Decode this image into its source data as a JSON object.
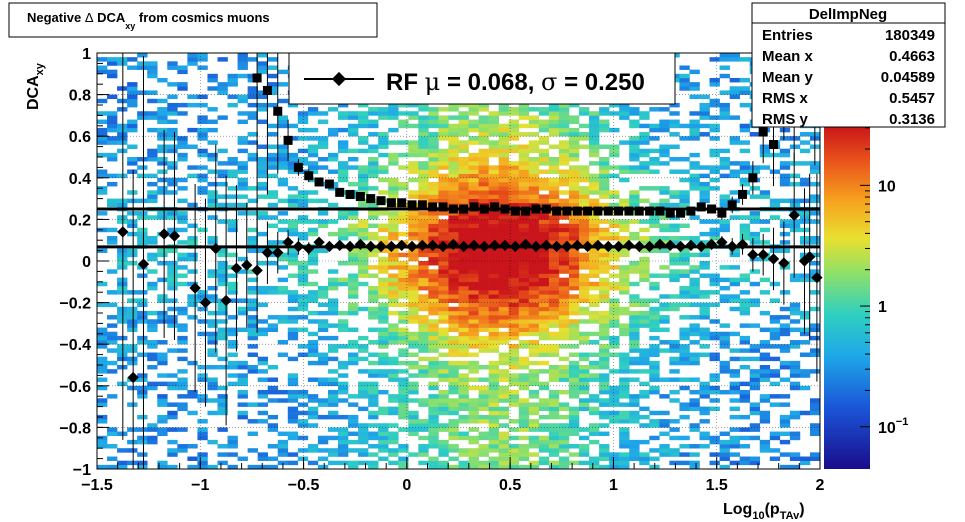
{
  "chart_data": {
    "type": "heatmap",
    "title": {
      "main": "Negative ",
      "symbol": "Δ",
      "dca": " DCA",
      "sub": "xy",
      "rest": " from cosmics muons"
    },
    "xlabel": {
      "main": "Log",
      "sub1": "10",
      "mid": "(p",
      "sub2": "TAv",
      "end": ")"
    },
    "ylabel": {
      "main": "DCA",
      "sub": "xy"
    },
    "xlim": [
      -1.5,
      2
    ],
    "ylim": [
      -1,
      1
    ],
    "x_ticks": [
      -1.5,
      -1,
      -0.5,
      0,
      0.5,
      1,
      1.5,
      2
    ],
    "x_tick_labels": [
      "−1.5",
      "−1",
      "−0.5",
      "0",
      "0.5",
      "1",
      "1.5",
      "2"
    ],
    "y_ticks": [
      -1,
      -0.8,
      -0.6,
      -0.4,
      -0.2,
      0,
      0.2,
      0.4,
      0.6,
      0.8,
      1
    ],
    "y_tick_labels": [
      "−1",
      "−0.8",
      "−0.6",
      "−0.4",
      "−0.2",
      "0",
      "0.2",
      "0.4",
      "0.6",
      "0.8",
      "1"
    ],
    "z_scale": "log",
    "z_ticks": [
      {
        "v": 10,
        "label": "10"
      },
      {
        "v": 1,
        "label": "1"
      },
      {
        "v": 0.1,
        "base": "10",
        "exp": "−1"
      }
    ],
    "grid": true,
    "stats_box": {
      "name": "DelImpNeg",
      "rows": [
        {
          "label": "Entries",
          "value": "180349"
        },
        {
          "label": "Mean x",
          "value": "0.4663"
        },
        {
          "label": "Mean y",
          "value": "0.04589"
        },
        {
          "label": "RMS x",
          "value": "0.5457"
        },
        {
          "label": "RMS y",
          "value": "0.3136"
        }
      ]
    },
    "legend": {
      "prefix": "RF ",
      "mu": "μ",
      "mid": " = 0.068, ",
      "sigma": "σ",
      "end": " = 0.250",
      "placement": "top"
    },
    "fit_lines": [
      {
        "name": "mean",
        "y": 0.068
      },
      {
        "name": "sigma",
        "y": 0.25
      }
    ],
    "mean_points": [
      {
        "x": -1.375,
        "y": 0.14,
        "err": 1.0
      },
      {
        "x": -1.325,
        "y": -0.56,
        "err": 1.0
      },
      {
        "x": -1.275,
        "y": -0.015,
        "err": 1.0
      },
      {
        "x": -1.175,
        "y": 0.13,
        "err": 0.5
      },
      {
        "x": -1.125,
        "y": 0.12,
        "err": 0.5
      },
      {
        "x": -1.025,
        "y": -0.13,
        "err": 0.5
      },
      {
        "x": -0.975,
        "y": -0.2,
        "err": 0.5
      },
      {
        "x": -0.925,
        "y": 0.06,
        "err": 0.5
      },
      {
        "x": -0.875,
        "y": -0.19,
        "err": 0.6
      },
      {
        "x": -0.825,
        "y": -0.035,
        "err": 0.4
      },
      {
        "x": -0.775,
        "y": -0.02,
        "err": 0.3
      },
      {
        "x": -0.725,
        "y": -0.045,
        "err": 0.3
      },
      {
        "x": -0.675,
        "y": 0.04,
        "err": 0.15
      },
      {
        "x": -0.625,
        "y": 0.04,
        "err": 0.1
      },
      {
        "x": -0.575,
        "y": 0.09,
        "err": 0.06
      },
      {
        "x": -0.525,
        "y": 0.07,
        "err": 0.04
      },
      {
        "x": -0.475,
        "y": 0.06,
        "err": 0.03
      },
      {
        "x": -0.425,
        "y": 0.09,
        "err": 0.02
      },
      {
        "x": -0.375,
        "y": 0.07,
        "err": 0.015
      },
      {
        "x": -0.325,
        "y": 0.075,
        "err": 0.01
      },
      {
        "x": -0.275,
        "y": 0.07,
        "err": 0.01
      },
      {
        "x": -0.225,
        "y": 0.08,
        "err": 0.01
      },
      {
        "x": -0.175,
        "y": 0.07,
        "err": 0.01
      },
      {
        "x": -0.125,
        "y": 0.07,
        "err": 0.01
      },
      {
        "x": -0.075,
        "y": 0.07,
        "err": 0.01
      },
      {
        "x": -0.025,
        "y": 0.075,
        "err": 0.01
      },
      {
        "x": 0.025,
        "y": 0.07,
        "err": 0.01
      },
      {
        "x": 0.075,
        "y": 0.075,
        "err": 0.01
      },
      {
        "x": 0.125,
        "y": 0.075,
        "err": 0.01
      },
      {
        "x": 0.175,
        "y": 0.07,
        "err": 0.01
      },
      {
        "x": 0.225,
        "y": 0.08,
        "err": 0.01
      },
      {
        "x": 0.275,
        "y": 0.07,
        "err": 0.01
      },
      {
        "x": 0.325,
        "y": 0.075,
        "err": 0.01
      },
      {
        "x": 0.375,
        "y": 0.07,
        "err": 0.01
      },
      {
        "x": 0.425,
        "y": 0.075,
        "err": 0.01
      },
      {
        "x": 0.475,
        "y": 0.075,
        "err": 0.01
      },
      {
        "x": 0.525,
        "y": 0.07,
        "err": 0.01
      },
      {
        "x": 0.575,
        "y": 0.08,
        "err": 0.01
      },
      {
        "x": 0.625,
        "y": 0.07,
        "err": 0.01
      },
      {
        "x": 0.675,
        "y": 0.075,
        "err": 0.01
      },
      {
        "x": 0.725,
        "y": 0.07,
        "err": 0.01
      },
      {
        "x": 0.775,
        "y": 0.07,
        "err": 0.01
      },
      {
        "x": 0.825,
        "y": 0.075,
        "err": 0.01
      },
      {
        "x": 0.875,
        "y": 0.07,
        "err": 0.01
      },
      {
        "x": 0.925,
        "y": 0.075,
        "err": 0.01
      },
      {
        "x": 0.975,
        "y": 0.07,
        "err": 0.01
      },
      {
        "x": 1.025,
        "y": 0.07,
        "err": 0.01
      },
      {
        "x": 1.075,
        "y": 0.075,
        "err": 0.01
      },
      {
        "x": 1.125,
        "y": 0.07,
        "err": 0.01
      },
      {
        "x": 1.175,
        "y": 0.07,
        "err": 0.01
      },
      {
        "x": 1.225,
        "y": 0.08,
        "err": 0.01
      },
      {
        "x": 1.275,
        "y": 0.075,
        "err": 0.01
      },
      {
        "x": 1.325,
        "y": 0.07,
        "err": 0.01
      },
      {
        "x": 1.375,
        "y": 0.075,
        "err": 0.015
      },
      {
        "x": 1.425,
        "y": 0.07,
        "err": 0.02
      },
      {
        "x": 1.475,
        "y": 0.08,
        "err": 0.02
      },
      {
        "x": 1.525,
        "y": 0.09,
        "err": 0.03
      },
      {
        "x": 1.575,
        "y": 0.07,
        "err": 0.04
      },
      {
        "x": 1.625,
        "y": 0.08,
        "err": 0.05
      },
      {
        "x": 1.675,
        "y": 0.03,
        "err": 0.08
      },
      {
        "x": 1.725,
        "y": 0.03,
        "err": 0.1
      },
      {
        "x": 1.775,
        "y": 0.01,
        "err": 0.15
      },
      {
        "x": 1.825,
        "y": -0.01,
        "err": 0.2
      },
      {
        "x": 1.875,
        "y": 0.22,
        "err": 0.3
      },
      {
        "x": 1.925,
        "y": 0.0,
        "err": 0.35
      },
      {
        "x": 1.95,
        "y": 0.02,
        "err": 0.4
      },
      {
        "x": 1.985,
        "y": -0.08,
        "err": 0.5
      }
    ],
    "sigma_points": [
      {
        "x": -0.725,
        "y": 0.88,
        "err": 0.9
      },
      {
        "x": -0.675,
        "y": 0.82,
        "err": 0.5
      },
      {
        "x": -0.625,
        "y": 0.72,
        "err": 0.3
      },
      {
        "x": -0.575,
        "y": 0.58,
        "err": 0.1
      },
      {
        "x": -0.525,
        "y": 0.45,
        "err": 0.04
      },
      {
        "x": -0.475,
        "y": 0.41,
        "err": 0.03
      },
      {
        "x": -0.425,
        "y": 0.38,
        "err": 0.02
      },
      {
        "x": -0.375,
        "y": 0.37,
        "err": 0.015
      },
      {
        "x": -0.325,
        "y": 0.33,
        "err": 0.01
      },
      {
        "x": -0.275,
        "y": 0.32,
        "err": 0.01
      },
      {
        "x": -0.225,
        "y": 0.31,
        "err": 0.01
      },
      {
        "x": -0.175,
        "y": 0.3,
        "err": 0.01
      },
      {
        "x": -0.125,
        "y": 0.29,
        "err": 0.01
      },
      {
        "x": -0.075,
        "y": 0.28,
        "err": 0.01
      },
      {
        "x": -0.025,
        "y": 0.28,
        "err": 0.01
      },
      {
        "x": 0.025,
        "y": 0.27,
        "err": 0.01
      },
      {
        "x": 0.075,
        "y": 0.27,
        "err": 0.01
      },
      {
        "x": 0.125,
        "y": 0.26,
        "err": 0.01
      },
      {
        "x": 0.175,
        "y": 0.26,
        "err": 0.01
      },
      {
        "x": 0.225,
        "y": 0.25,
        "err": 0.01
      },
      {
        "x": 0.275,
        "y": 0.25,
        "err": 0.01
      },
      {
        "x": 0.325,
        "y": 0.26,
        "err": 0.01
      },
      {
        "x": 0.375,
        "y": 0.25,
        "err": 0.01
      },
      {
        "x": 0.425,
        "y": 0.26,
        "err": 0.01
      },
      {
        "x": 0.475,
        "y": 0.25,
        "err": 0.01
      },
      {
        "x": 0.525,
        "y": 0.24,
        "err": 0.01
      },
      {
        "x": 0.575,
        "y": 0.24,
        "err": 0.01
      },
      {
        "x": 0.625,
        "y": 0.25,
        "err": 0.01
      },
      {
        "x": 0.675,
        "y": 0.25,
        "err": 0.01
      },
      {
        "x": 0.725,
        "y": 0.24,
        "err": 0.01
      },
      {
        "x": 0.775,
        "y": 0.24,
        "err": 0.01
      },
      {
        "x": 0.825,
        "y": 0.24,
        "err": 0.01
      },
      {
        "x": 0.875,
        "y": 0.24,
        "err": 0.01
      },
      {
        "x": 0.925,
        "y": 0.24,
        "err": 0.01
      },
      {
        "x": 0.975,
        "y": 0.24,
        "err": 0.01
      },
      {
        "x": 1.025,
        "y": 0.24,
        "err": 0.01
      },
      {
        "x": 1.075,
        "y": 0.24,
        "err": 0.01
      },
      {
        "x": 1.125,
        "y": 0.24,
        "err": 0.01
      },
      {
        "x": 1.175,
        "y": 0.24,
        "err": 0.01
      },
      {
        "x": 1.225,
        "y": 0.24,
        "err": 0.01
      },
      {
        "x": 1.275,
        "y": 0.23,
        "err": 0.01
      },
      {
        "x": 1.325,
        "y": 0.23,
        "err": 0.01
      },
      {
        "x": 1.375,
        "y": 0.24,
        "err": 0.015
      },
      {
        "x": 1.425,
        "y": 0.26,
        "err": 0.02
      },
      {
        "x": 1.475,
        "y": 0.25,
        "err": 0.02
      },
      {
        "x": 1.525,
        "y": 0.23,
        "err": 0.03
      },
      {
        "x": 1.575,
        "y": 0.27,
        "err": 0.04
      },
      {
        "x": 1.625,
        "y": 0.32,
        "err": 0.05
      },
      {
        "x": 1.675,
        "y": 0.4,
        "err": 0.08
      },
      {
        "x": 1.725,
        "y": 0.62,
        "err": 0.15
      },
      {
        "x": 1.775,
        "y": 0.56,
        "err": 0.2
      },
      {
        "x": 1.825,
        "y": 0.88,
        "err": 0.3
      },
      {
        "x": 1.875,
        "y": 0.88,
        "err": 0.4
      },
      {
        "x": 1.975,
        "y": 0.96,
        "err": 0.5
      }
    ]
  }
}
